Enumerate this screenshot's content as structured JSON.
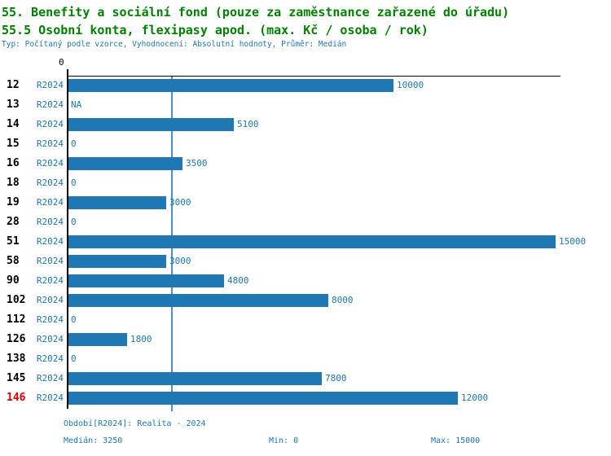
{
  "title_line1": "55. Benefity a sociální fond (pouze za zaměstnance zařazené do úřadu)",
  "title_line2": "55.5 Osobní konta, flexipasy apod. (max. Kč / osoba / rok)",
  "subtitle": "Typ: Počítaný podle vzorce, Vyhodnocení: Absolutní hodnoty, Průměr: Medián",
  "colors": {
    "title_green": "#008000",
    "text_blue": "#1f77b4",
    "bar_blue": "#1f77b4",
    "highlight_red": "#dd0000",
    "axis_black": "#000000",
    "median_line_blue": "#4a94c4"
  },
  "chart_data": {
    "type": "bar",
    "orientation": "horizontal",
    "categories": [
      "12",
      "13",
      "14",
      "15",
      "16",
      "18",
      "19",
      "28",
      "51",
      "58",
      "90",
      "102",
      "112",
      "126",
      "138",
      "145",
      "146"
    ],
    "period_label": "R2024",
    "values": [
      10000,
      null,
      5100,
      0,
      3500,
      0,
      3000,
      0,
      15000,
      3000,
      4800,
      8000,
      0,
      1800,
      0,
      7800,
      12000
    ],
    "value_labels": [
      "10000",
      "NA",
      "5100",
      "0",
      "3500",
      "0",
      "3000",
      "0",
      "15000",
      "3000",
      "4800",
      "8000",
      "0",
      "1800",
      "0",
      "7800",
      "12000"
    ],
    "highlighted_category": "146",
    "xlim": [
      0,
      15000
    ],
    "x_tick_labels": [
      "0"
    ],
    "median_line_value": 3250,
    "grid": false,
    "legend": "none"
  },
  "footer": {
    "period_info": "Období[R2024]: Realita - 2024",
    "median": "Medián: 3250",
    "min": "Min: 0",
    "max": "Max: 15000"
  }
}
